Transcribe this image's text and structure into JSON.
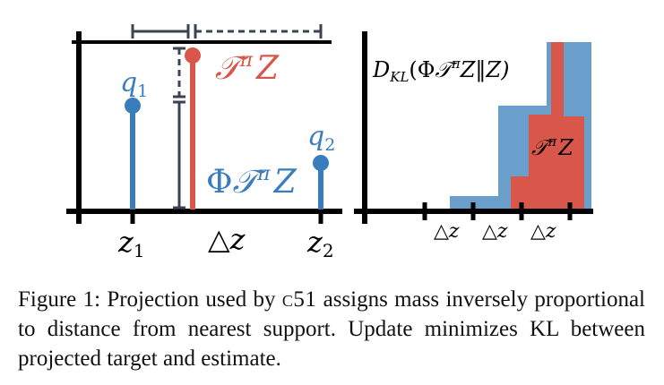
{
  "colors": {
    "blue": "#3a7dbd",
    "blue_light": "#6b9fcb",
    "red": "#d9574a",
    "dark": "#3b4552",
    "axis": "#000000"
  },
  "left_panel": {
    "q1_label": "q",
    "q1_sub": "1",
    "q2_label": "q",
    "q2_sub": "2",
    "target_label": "𝒯",
    "target_sup": "π",
    "target_var": "Z",
    "projected_phi": "Φ",
    "projected_T": "𝒯",
    "projected_sup": "π",
    "projected_var": "Z",
    "z1_label": "z",
    "z1_sub": "1",
    "z2_label": "z",
    "z2_sub": "2",
    "dz_symbol": "△",
    "dz_var": "z"
  },
  "right_panel": {
    "kl_D": "D",
    "kl_sub": "KL",
    "kl_open": "(Φ",
    "kl_T": "𝒯",
    "kl_sup": "π",
    "kl_mid": "Z‖Z)",
    "red_T": "𝒯",
    "red_sup": "π",
    "red_var": "Z",
    "dz_symbol": "△",
    "dz_var": "z"
  },
  "caption": {
    "prefix": "Figure 1: Projection used by ",
    "algo": "c51",
    "rest": " assigns mass inversely proportional to distance from nearest support. Update minimizes KL between projected target and estimate."
  }
}
